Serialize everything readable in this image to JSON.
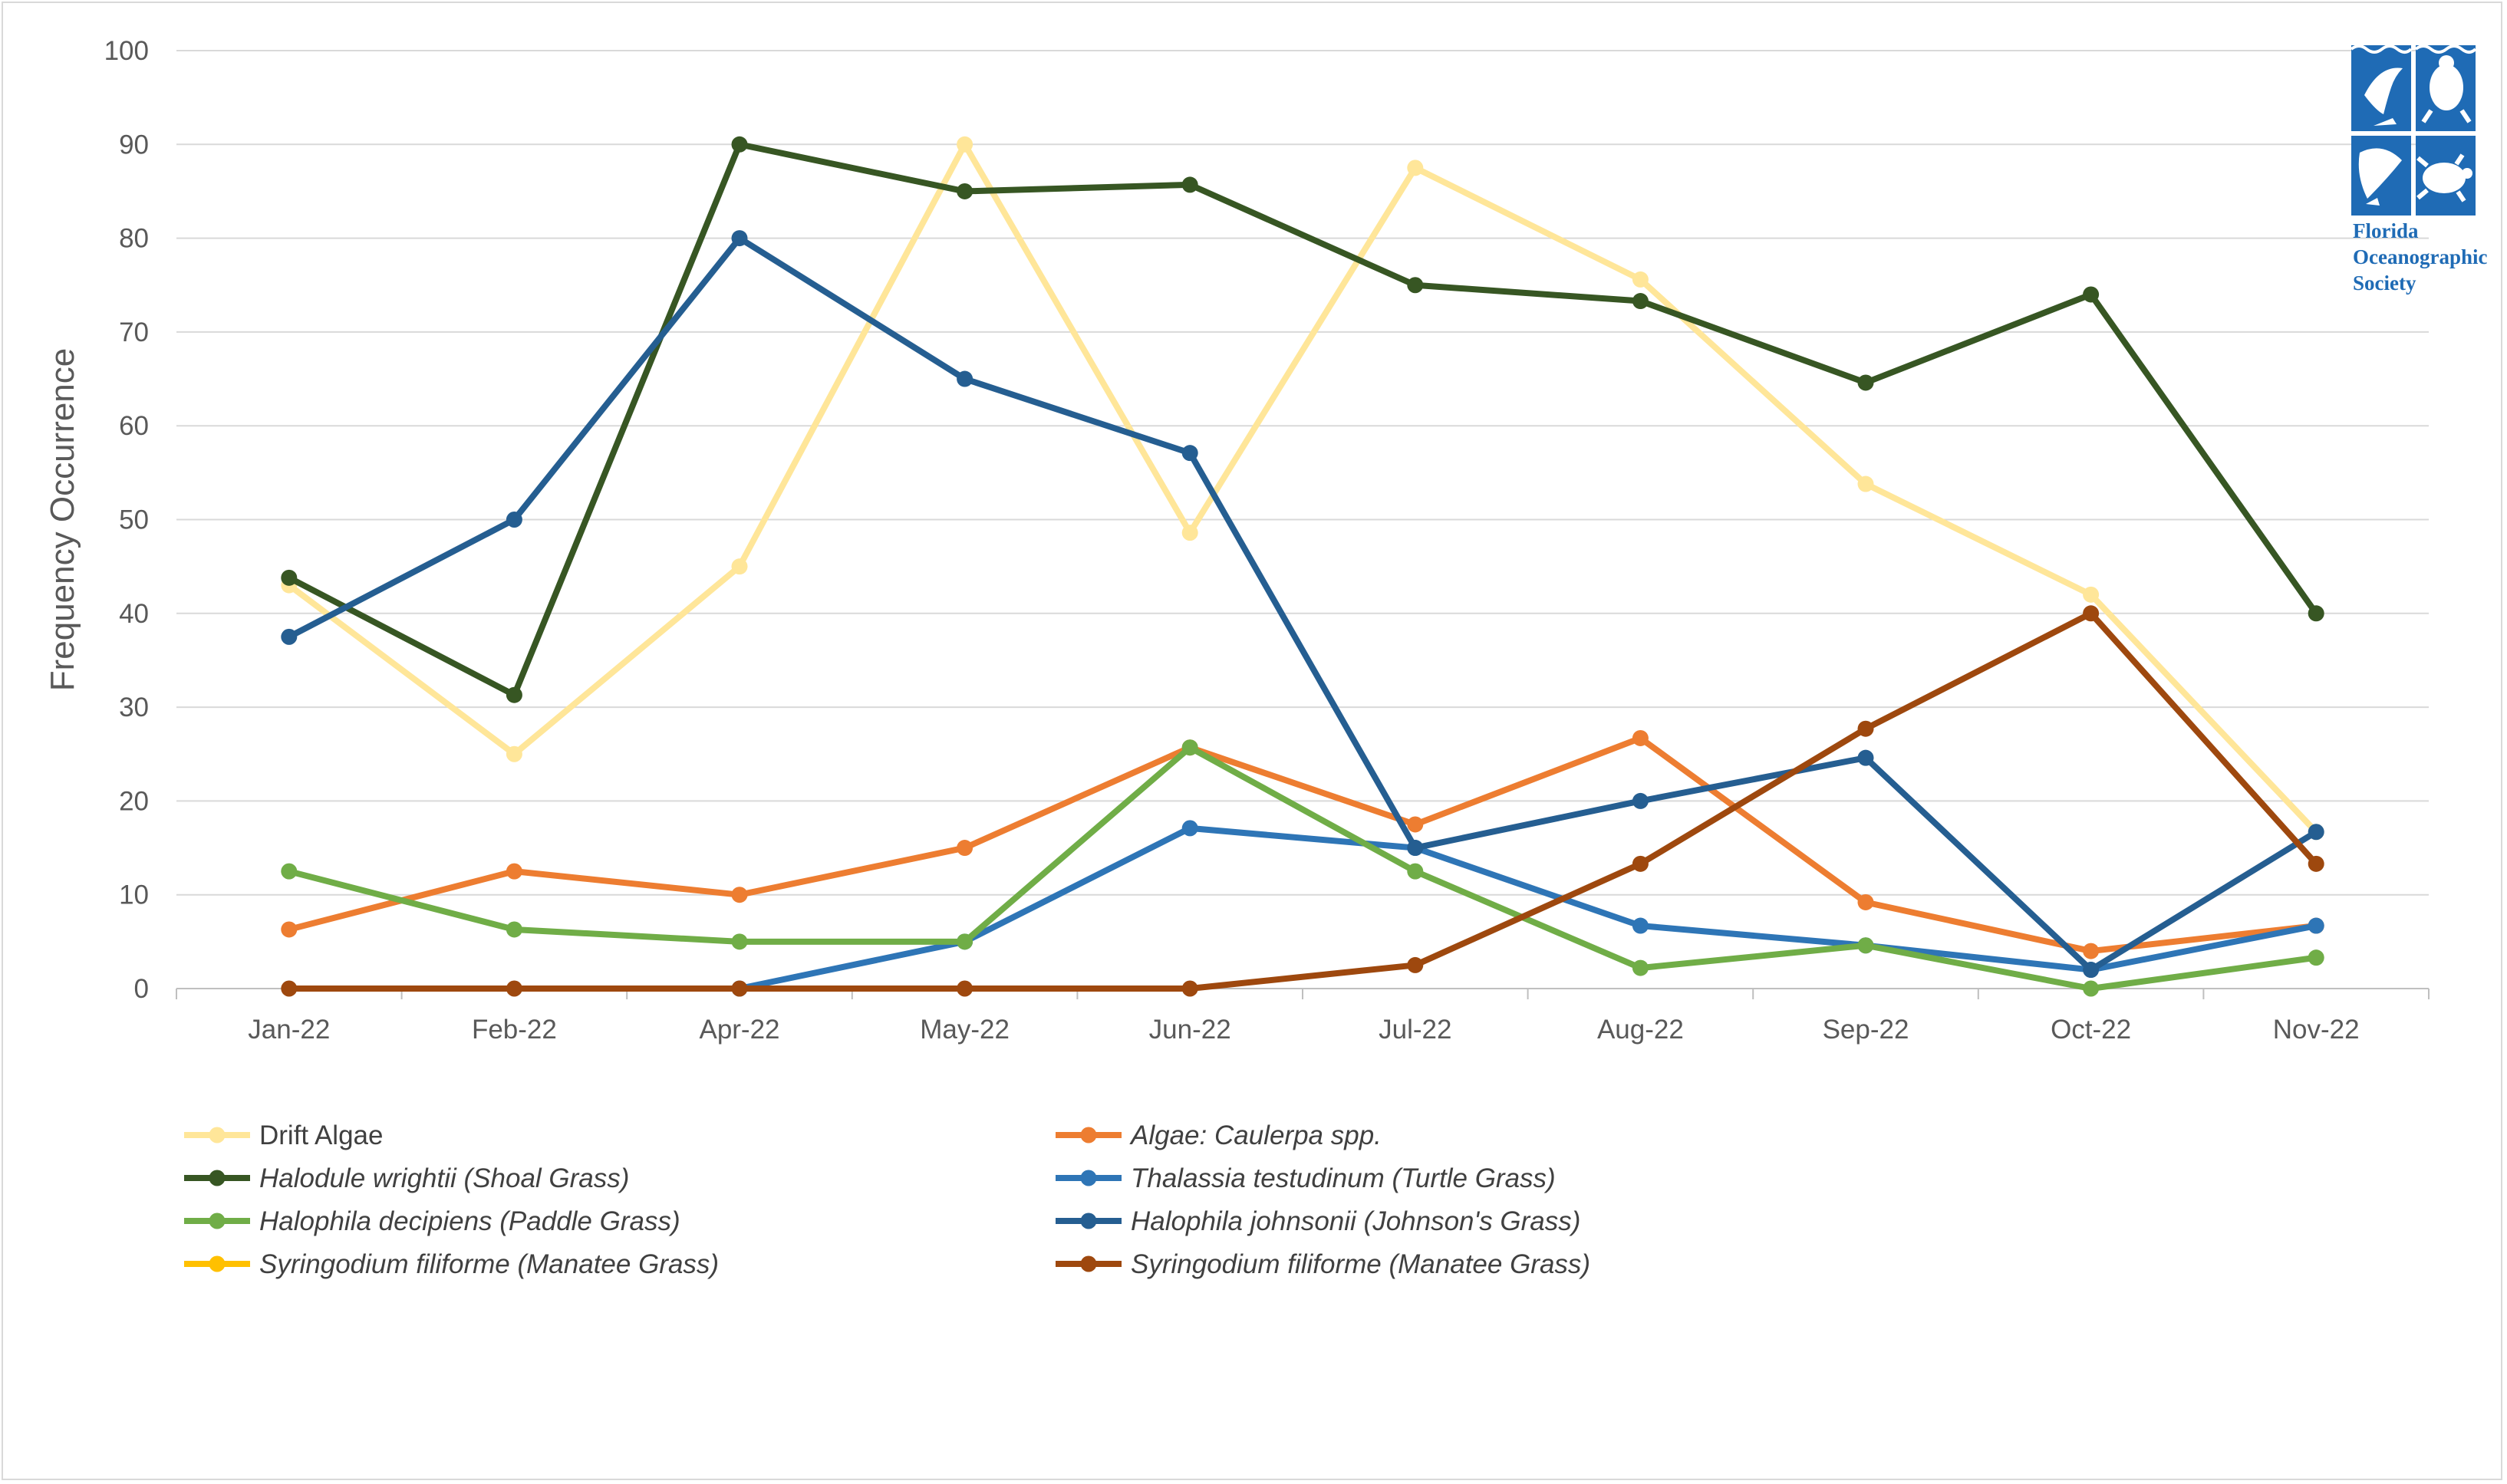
{
  "chart_data": {
    "type": "line",
    "title": "",
    "xlabel": "",
    "ylabel": "Frequency Occurrence",
    "ylim": [
      0,
      100
    ],
    "yticks": [
      0,
      10,
      20,
      30,
      40,
      50,
      60,
      70,
      80,
      90,
      100
    ],
    "grid": true,
    "legend_position": "bottom",
    "categories": [
      "Jan-22",
      "Feb-22",
      "Apr-22",
      "May-22",
      "Jun-22",
      "Jul-22",
      "Aug-22",
      "Sep-22",
      "Oct-22",
      "Nov-22"
    ],
    "series": [
      {
        "name": "Drift Algae",
        "italic": false,
        "color": "#ffe699",
        "values": [
          43,
          25,
          45,
          90,
          48.6,
          87.5,
          75.6,
          53.8,
          42,
          16.7
        ]
      },
      {
        "name": "Algae: Caulerpa spp.",
        "italic": true,
        "color": "#ed7d31",
        "values": [
          6.3,
          12.5,
          10,
          15,
          25.7,
          17.5,
          26.7,
          9.2,
          4,
          6.7
        ]
      },
      {
        "name": "Halodule wrightii (Shoal Grass)",
        "italic": true,
        "color": "#375623",
        "values": [
          43.8,
          31.3,
          90,
          85,
          85.7,
          75,
          73.3,
          64.6,
          74,
          40
        ]
      },
      {
        "name": "Thalassia testudinum (Turtle Grass)",
        "italic": true,
        "color": "#2e75b6",
        "values": [
          null,
          null,
          0,
          5,
          17.1,
          15,
          6.7,
          4.6,
          2,
          6.7
        ]
      },
      {
        "name": "Halophila decipiens (Paddle Grass)",
        "italic": true,
        "color": "#70ad47",
        "values": [
          12.5,
          6.3,
          5,
          5,
          25.7,
          12.5,
          2.2,
          4.6,
          0,
          3.3
        ]
      },
      {
        "name": "Halophila johnsonii (Johnson's Grass)",
        "italic": true,
        "color": "#255e91",
        "values": [
          37.5,
          50,
          80,
          65,
          57.1,
          15,
          20,
          24.6,
          2,
          16.7
        ]
      },
      {
        "name": "Syringodium filiforme (Manatee Grass)",
        "italic": true,
        "color": "#ffc000",
        "values": [
          null,
          null,
          null,
          null,
          null,
          null,
          null,
          null,
          null,
          null
        ]
      },
      {
        "name": "Syringodium filiforme (Manatee Grass)",
        "italic": true,
        "color": "#9e480e",
        "values": [
          0,
          0,
          0,
          0,
          0,
          2.5,
          13.3,
          27.7,
          40,
          13.3
        ]
      }
    ]
  },
  "logo": {
    "lines": [
      "Florida",
      "Oceanographic",
      "Society"
    ],
    "color": "#1f6bb5",
    "icon": "florida-oceanographic-society-logo"
  }
}
